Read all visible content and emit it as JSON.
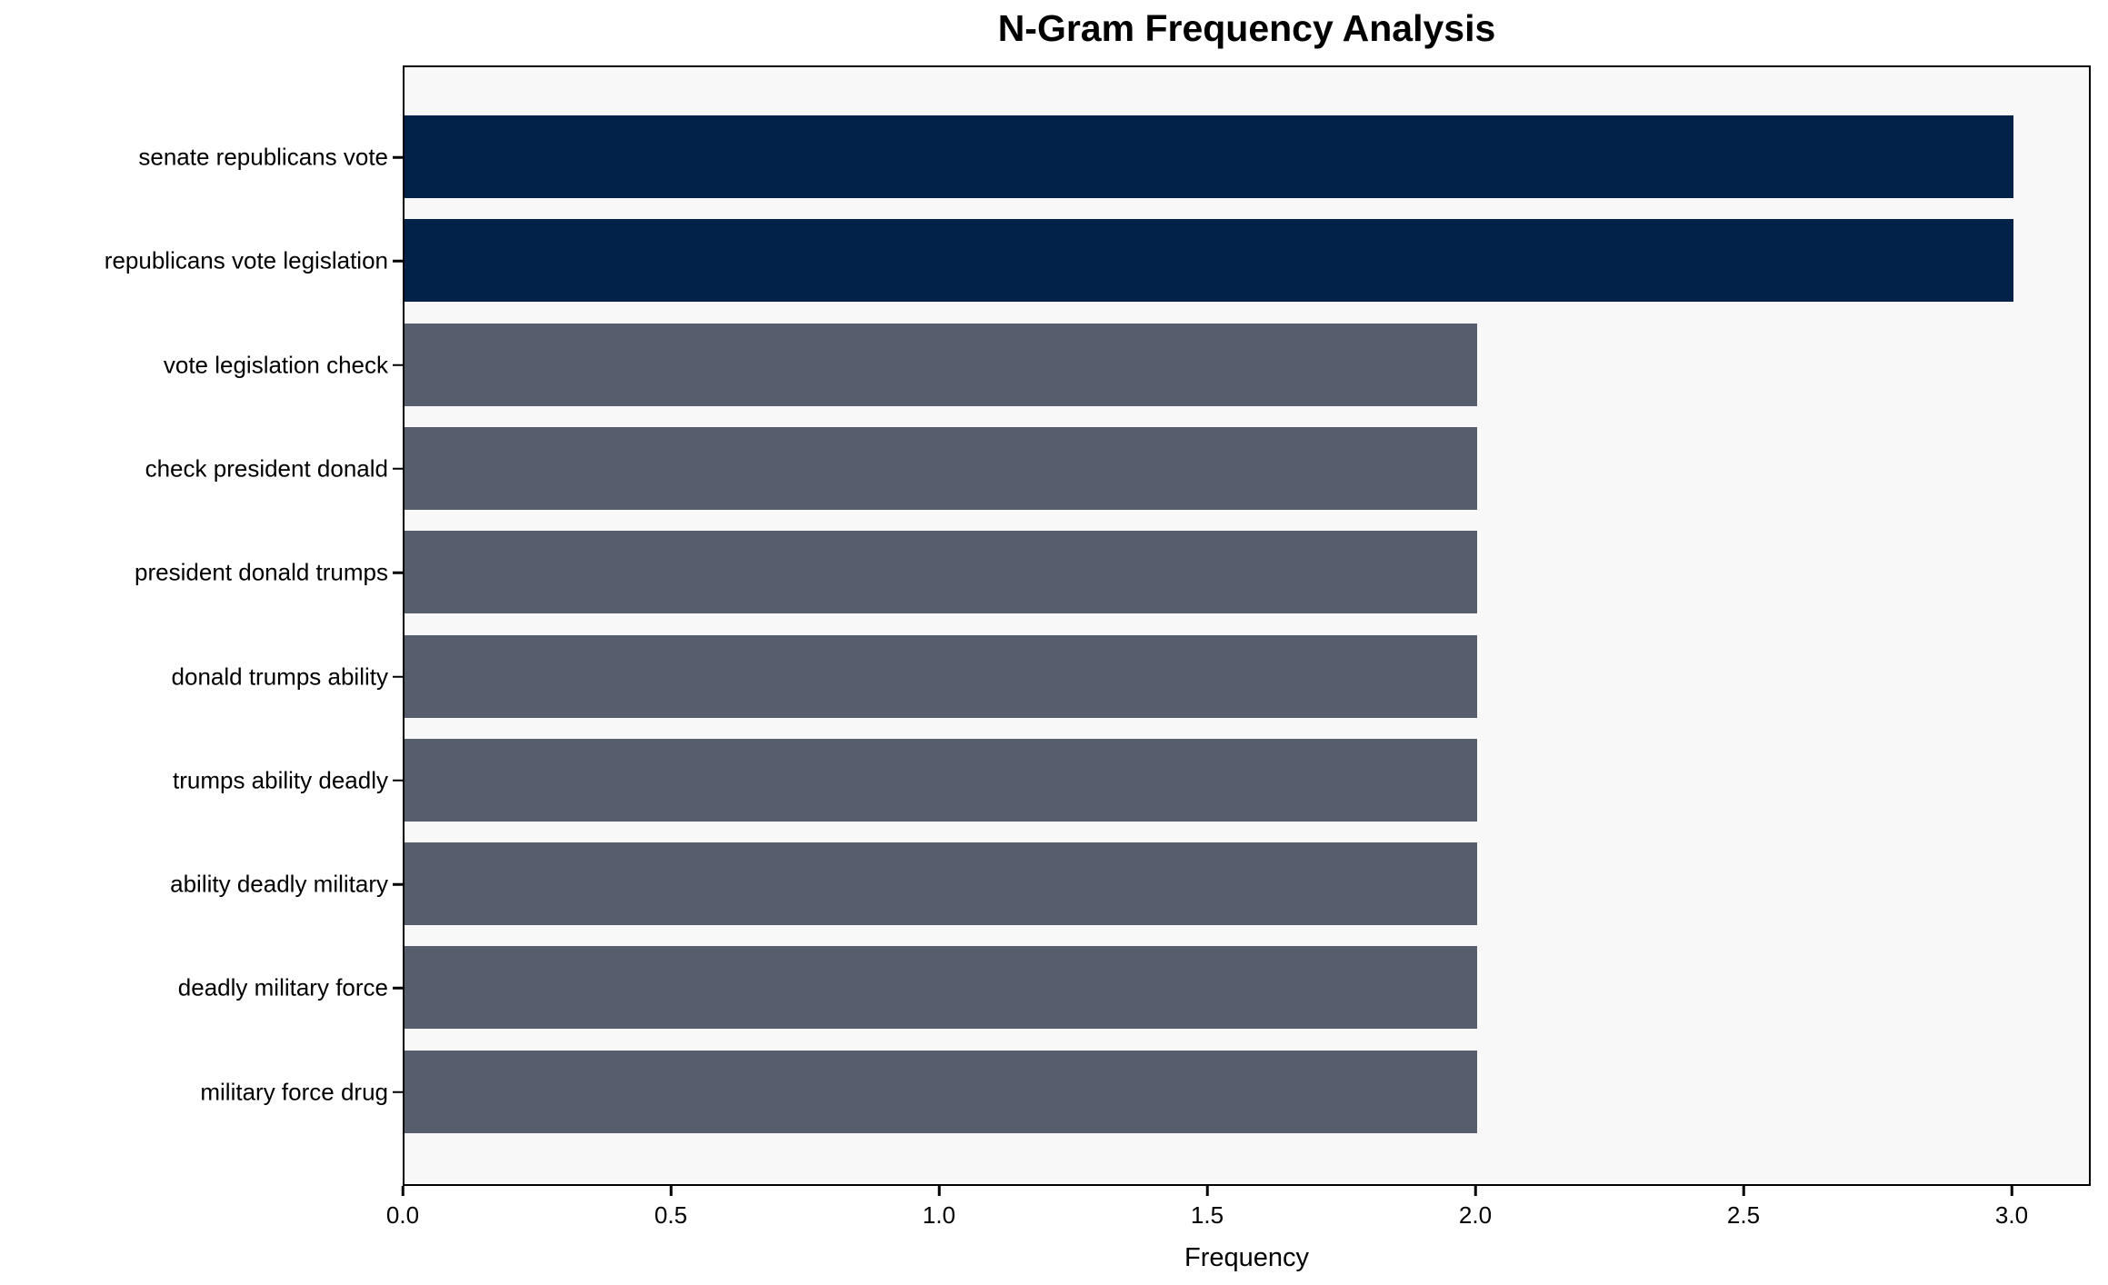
{
  "chart_data": {
    "type": "bar",
    "orientation": "horizontal",
    "title": "N-Gram Frequency Analysis",
    "xlabel": "Frequency",
    "ylabel": "",
    "categories": [
      "senate republicans vote",
      "republicans vote legislation",
      "vote legislation check",
      "check president donald",
      "president donald trumps",
      "donald trumps ability",
      "trumps ability deadly",
      "ability deadly military",
      "deadly military force",
      "military force drug"
    ],
    "values": [
      3,
      3,
      2,
      2,
      2,
      2,
      2,
      2,
      2,
      2
    ],
    "bar_colors": [
      "#03224A",
      "#03224A",
      "#565D6C",
      "#565D6C",
      "#565D6C",
      "#565D6C",
      "#565D6C",
      "#565D6C",
      "#565D6C",
      "#565D6C"
    ],
    "x_ticks": [
      0.0,
      0.5,
      1.0,
      1.5,
      2.0,
      2.5,
      3.0
    ],
    "x_tick_labels": [
      "0.0",
      "0.5",
      "1.0",
      "1.5",
      "2.0",
      "2.5",
      "3.0"
    ],
    "xlim": [
      0,
      3.147
    ],
    "grid": false,
    "legend": null,
    "colors": {
      "highlight_bar": "#03224A",
      "default_bar": "#565D6C",
      "plot_background": "#F8F8F9",
      "figure_background": "#FFFFFF",
      "axis": "#000000",
      "text": "#000000"
    }
  }
}
